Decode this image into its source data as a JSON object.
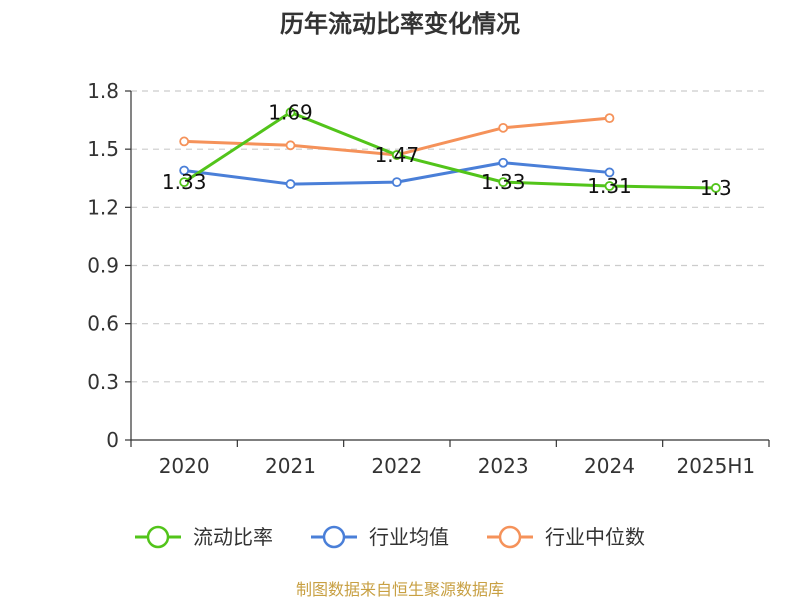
{
  "chart_data": {
    "type": "line",
    "title": "历年流动比率变化情况",
    "categories": [
      "2020",
      "2021",
      "2022",
      "2023",
      "2024",
      "2025H1"
    ],
    "ylim": [
      0,
      1.8
    ],
    "yticks": [
      "0",
      "0.3",
      "0.6",
      "0.9",
      "1.2",
      "1.5",
      "1.8"
    ],
    "grid": true,
    "legend_position": "bottom",
    "series": [
      {
        "name": "流动比率",
        "color": "#52c41a",
        "values": [
          1.33,
          1.69,
          1.47,
          1.33,
          1.31,
          1.3
        ],
        "labels": [
          "1.33",
          "1.69",
          "1.47",
          "1.33",
          "1.31",
          "1.3"
        ]
      },
      {
        "name": "行业均值",
        "color": "#4a7fd8",
        "values": [
          1.39,
          1.32,
          1.33,
          1.43,
          1.38,
          null
        ]
      },
      {
        "name": "行业中位数",
        "color": "#f5925a",
        "values": [
          1.54,
          1.52,
          1.47,
          1.61,
          1.66,
          null
        ]
      }
    ]
  },
  "source_text": "制图数据来自恒生聚源数据库"
}
